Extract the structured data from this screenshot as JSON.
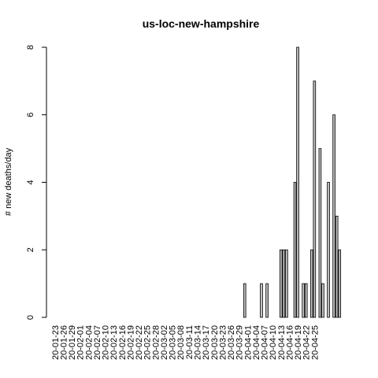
{
  "chart_data": {
    "type": "bar",
    "title": "us-loc-new-hampshire",
    "xlabel": "",
    "ylabel": "# new deaths/day",
    "ylim": [
      0,
      8
    ],
    "yticks": [
      0,
      2,
      4,
      6,
      8
    ],
    "grid": false,
    "x_tick_labels": [
      "20-01-23",
      "20-01-26",
      "20-01-29",
      "20-02-01",
      "20-02-04",
      "20-02-07",
      "20-02-10",
      "20-02-13",
      "20-02-16",
      "20-02-19",
      "20-02-22",
      "20-02-25",
      "20-02-28",
      "20-03-02",
      "20-03-05",
      "20-03-08",
      "20-03-11",
      "20-03-14",
      "20-03-17",
      "20-03-20",
      "20-03-23",
      "20-03-26",
      "20-03-29",
      "20-04-01",
      "20-04-04",
      "20-04-07",
      "20-04-10",
      "20-04-13",
      "20-04-16",
      "20-04-19",
      "20-04-22",
      "20-04-25"
    ],
    "first_date": "20-01-23",
    "values": [
      0,
      0,
      0,
      0,
      0,
      0,
      0,
      0,
      0,
      0,
      0,
      0,
      0,
      0,
      0,
      0,
      0,
      0,
      0,
      0,
      0,
      0,
      0,
      0,
      0,
      0,
      0,
      0,
      0,
      0,
      0,
      0,
      0,
      0,
      0,
      0,
      0,
      0,
      0,
      0,
      0,
      0,
      0,
      0,
      0,
      0,
      0,
      0,
      0,
      0,
      0,
      0,
      0,
      0,
      0,
      0,
      0,
      0,
      0,
      0,
      0,
      0,
      0,
      0,
      0,
      0,
      0,
      0,
      1,
      0,
      0,
      0,
      0,
      0,
      1,
      0,
      1,
      0,
      0,
      0,
      0,
      2,
      2,
      2,
      0,
      0,
      4,
      8,
      0,
      1,
      1,
      0,
      2,
      7,
      0,
      5,
      1,
      0,
      4,
      0,
      6,
      3,
      2
    ]
  }
}
